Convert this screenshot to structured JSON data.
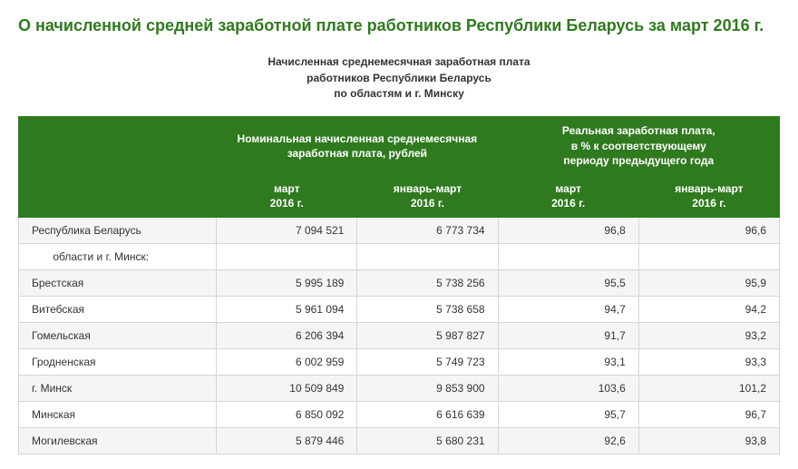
{
  "colors": {
    "title": "#2f7a1e",
    "subtitle": "#333333",
    "header_bg": "#2f7a1e",
    "header_text": "#ffffff",
    "row_alt_bg": "#f5f5f5",
    "border": "#d6d6d6"
  },
  "title": "О начисленной средней заработной плате работников Республики Беларусь за март 2016 г.",
  "subtitle_lines": [
    "Начисленная среднемесячная заработная плата",
    "работников Республики Беларусь",
    "по областям и г. Минску"
  ],
  "table": {
    "header_group_1": "Номинальная начисленная среднемесячная заработная плата, рублей",
    "header_group_2": "Реальная заработная плата,\nв % к соответствующему\nпериоду предыдущего года",
    "sub_headers": [
      "март\n2016 г.",
      "январь-март\n2016 г.",
      "март\n2016 г.",
      "январь-март\n2016 г."
    ],
    "rows": [
      {
        "region": "Республика Беларусь",
        "cells": [
          "7 094 521",
          "6 773 734",
          "96,8",
          "96,6"
        ]
      },
      {
        "region": "       области и г. Минск:",
        "cells": [
          "",
          "",
          "",
          ""
        ]
      },
      {
        "region": "Брестская",
        "cells": [
          "5 995 189",
          "5 738 256",
          "95,5",
          "95,9"
        ]
      },
      {
        "region": "Витебская",
        "cells": [
          "5 961 094",
          "5 738 658",
          "94,7",
          "94,2"
        ]
      },
      {
        "region": "Гомельская",
        "cells": [
          "6 206 394",
          "5 987 827",
          "91,7",
          "93,2"
        ]
      },
      {
        "region": "Гродненская",
        "cells": [
          "6 002 959",
          "5 749 723",
          "93,1",
          "93,3"
        ]
      },
      {
        "region": "г. Минск",
        "cells": [
          "10 509 849",
          "9 853 900",
          "103,6",
          "101,2"
        ]
      },
      {
        "region": "Минская",
        "cells": [
          "6 850 092",
          "6 616 639",
          "95,7",
          "96,7"
        ]
      },
      {
        "region": "Могилевская",
        "cells": [
          "5 879 446",
          "5 680 231",
          "92,6",
          "93,8"
        ]
      }
    ]
  }
}
